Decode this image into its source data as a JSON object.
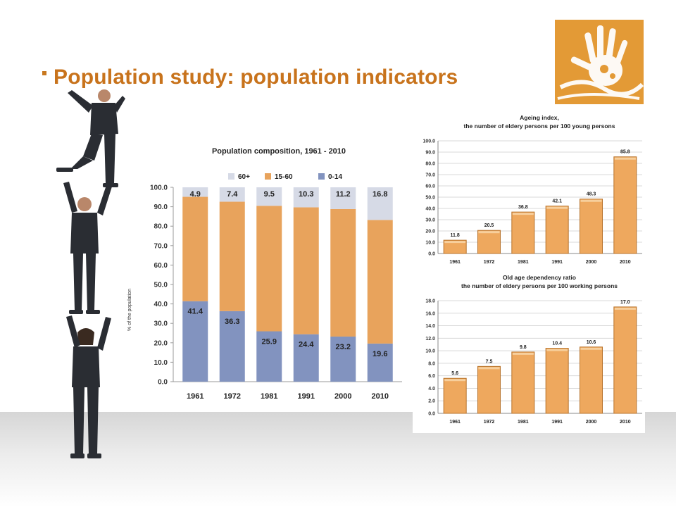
{
  "slide": {
    "title": "Population study: population indicators"
  },
  "colors": {
    "title": "#c8731c",
    "bar_orange": "#e8a35c",
    "bar_blue": "#8293bf",
    "bar_grey": "#d6dae6",
    "logo_bg": "#e39a36"
  },
  "icons": {
    "logo": "handprint-logo",
    "illustration": "people-stack-illustration"
  },
  "chart_data": [
    {
      "type": "bar",
      "stacked": true,
      "title": "Population composition, 1961 - 2010",
      "ylabel": "% of the population",
      "categories": [
        "1961",
        "1972",
        "1981",
        "1991",
        "2000",
        "2010"
      ],
      "series": [
        {
          "name": "0-14",
          "color": "#8293bf",
          "values": [
            41.4,
            36.3,
            25.9,
            24.4,
            23.2,
            19.6
          ]
        },
        {
          "name": "15-60",
          "color": "#e8a35c",
          "values": [
            53.7,
            56.3,
            64.6,
            65.3,
            65.6,
            63.6
          ]
        },
        {
          "name": "60+",
          "color": "#d6dae6",
          "values": [
            4.9,
            7.4,
            9.5,
            10.3,
            11.2,
            16.8
          ]
        }
      ],
      "ylim": [
        0,
        100
      ],
      "yticks": [
        "0.0",
        "10.0",
        "20.0",
        "30.0",
        "40.0",
        "50.0",
        "60.0",
        "70.0",
        "80.0",
        "90.0",
        "100.0"
      ],
      "legend": "top",
      "grid": false
    },
    {
      "type": "bar",
      "title": "Ageing index,",
      "subtitle": "the number of eldery persons per 100 young persons",
      "categories": [
        "1961",
        "1972",
        "1981",
        "1991",
        "2000",
        "2010"
      ],
      "values": [
        11.8,
        20.5,
        36.8,
        42.1,
        48.3,
        85.8
      ],
      "value_labels": [
        "11.8",
        "20.5",
        "36.8",
        "42.1",
        "48.3",
        "85.8"
      ],
      "ylim": [
        0,
        100
      ],
      "yticks": [
        "0.0",
        "10.0",
        "20.0",
        "30.0",
        "40.0",
        "50.0",
        "60.0",
        "70.0",
        "80.0",
        "90.0",
        "100.0"
      ],
      "grid": true
    },
    {
      "type": "bar",
      "title": "Old age dependency ratio",
      "subtitle": "the number of eldery persons per 100 working persons",
      "categories": [
        "1961",
        "1972",
        "1981",
        "1991",
        "2000",
        "2010"
      ],
      "values": [
        5.6,
        7.5,
        9.8,
        10.4,
        10.6,
        17.0
      ],
      "value_labels": [
        "5.6",
        "7.5",
        "9.8",
        "10.4",
        "10.6",
        "17.0"
      ],
      "ylim": [
        0,
        18
      ],
      "yticks": [
        "0.0",
        "2.0",
        "4.0",
        "6.0",
        "8.0",
        "10.0",
        "12.0",
        "14.0",
        "16.0",
        "18.0"
      ],
      "grid": true
    }
  ]
}
